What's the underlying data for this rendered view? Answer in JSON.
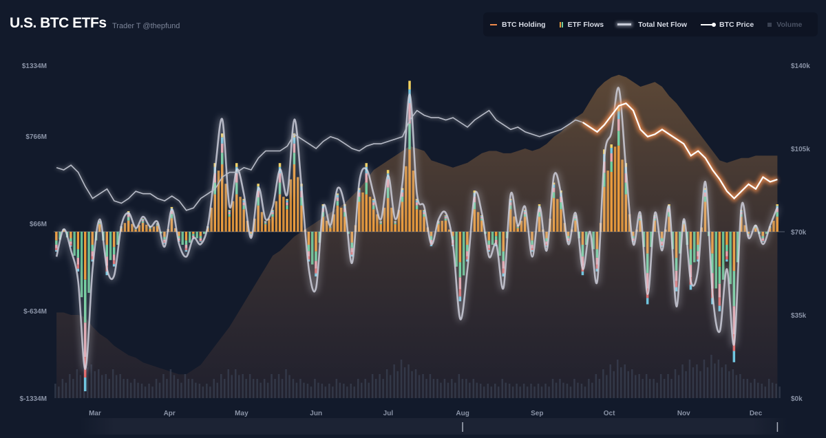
{
  "header": {
    "title": "U.S. BTC ETFs",
    "subtitle": "Trader T @thepfund"
  },
  "legend": [
    {
      "label": "BTC Holding",
      "color": "#f08a4b",
      "icon": "dash"
    },
    {
      "label": "ETF Flows",
      "color": "#e89a3c",
      "icon": "twin-bars"
    },
    {
      "label": "Total Net Flow",
      "color": "#c9ccd8",
      "icon": "glow-line"
    },
    {
      "label": "BTC Price",
      "color": "#ffffff",
      "icon": "line-dot"
    },
    {
      "label": "Volume",
      "color": "#3a4152",
      "icon": "square",
      "state": "disabled"
    }
  ],
  "colors": {
    "background": "#121a2b",
    "flow_segments": [
      "#e89a3c",
      "#6fcf9c",
      "#e8a3ab",
      "#70c6e0",
      "#e06a6a",
      "#f0d060",
      "#a08ae0"
    ],
    "holding_fill": "#5a4636",
    "price_highlight": "#f08a4b"
  },
  "chart_data": {
    "type": "bar+line+area",
    "left_axis": {
      "ticks": [
        "$1334M",
        "$766M",
        "$66M",
        "$-634M",
        "$-1334M"
      ],
      "range": [
        -1334,
        1334
      ],
      "unit": "$M"
    },
    "right_axis": {
      "ticks": [
        "$140k",
        "$105k",
        "$70k",
        "$35k",
        "$0k"
      ],
      "range": [
        0,
        140
      ],
      "unit": "$k"
    },
    "x_ticks": [
      "Mar",
      "Apr",
      "May",
      "Jun",
      "Jul",
      "Aug",
      "Sep",
      "Oct",
      "Nov",
      "Dec"
    ],
    "x_tick_dates": [
      "03-01",
      "04-01",
      "05-01",
      "06-01",
      "07-01",
      "08-01",
      "09-01",
      "10-01",
      "11-01",
      "12-01"
    ],
    "dates": [
      "02-13",
      "02-16",
      "02-19",
      "02-22",
      "02-25",
      "02-28",
      "03-03",
      "03-06",
      "03-09",
      "03-12",
      "03-15",
      "03-18",
      "03-21",
      "03-24",
      "03-27",
      "03-30",
      "04-02",
      "04-05",
      "04-08",
      "04-11",
      "04-14",
      "04-17",
      "04-20",
      "04-23",
      "04-26",
      "04-29",
      "05-02",
      "05-05",
      "05-08",
      "05-11",
      "05-14",
      "05-17",
      "05-20",
      "05-23",
      "05-26",
      "05-29",
      "06-01",
      "06-04",
      "06-07",
      "06-10",
      "06-13",
      "06-16",
      "06-19",
      "06-22",
      "06-25",
      "06-28",
      "07-01",
      "07-04",
      "07-07",
      "07-10",
      "07-13",
      "07-16",
      "07-19",
      "07-22",
      "07-25",
      "07-28",
      "07-31",
      "08-03",
      "08-06",
      "08-09",
      "08-12",
      "08-15",
      "08-18",
      "08-21",
      "08-24",
      "08-27",
      "08-30",
      "09-02",
      "09-05",
      "09-08",
      "09-11",
      "09-14",
      "09-17",
      "09-20",
      "09-23",
      "09-26",
      "09-29",
      "10-02",
      "10-05",
      "10-08",
      "10-11",
      "10-14",
      "10-17",
      "10-20",
      "10-23",
      "10-26",
      "10-29",
      "11-01",
      "11-04",
      "11-07",
      "11-10",
      "11-13",
      "11-16",
      "11-19",
      "11-22",
      "11-25",
      "11-28",
      "12-01",
      "12-04",
      "12-07",
      "12-10"
    ],
    "series": [
      {
        "name": "Total Net Flow",
        "axis": "left",
        "values": [
          -200,
          20,
          -150,
          -400,
          -1100,
          -300,
          100,
          -300,
          -350,
          50,
          150,
          30,
          120,
          40,
          80,
          -120,
          180,
          -100,
          -200,
          -50,
          -100,
          50,
          500,
          900,
          200,
          500,
          300,
          -50,
          350,
          100,
          200,
          500,
          300,
          900,
          350,
          -300,
          -450,
          200,
          50,
          350,
          200,
          -250,
          400,
          500,
          300,
          100,
          450,
          100,
          400,
          1100,
          300,
          200,
          -100,
          100,
          150,
          -100,
          -700,
          -300,
          300,
          150,
          -200,
          -100,
          -450,
          300,
          50,
          200,
          -200,
          200,
          -150,
          450,
          300,
          -100,
          150,
          -300,
          0,
          -400,
          600,
          800,
          1150,
          500,
          -100,
          150,
          -500,
          150,
          -150,
          200,
          -600,
          100,
          -400,
          -300,
          400,
          -500,
          -800,
          -300,
          -900,
          200,
          -50,
          50,
          -100,
          50,
          200
        ]
      },
      {
        "name": "BTC Price",
        "axis": "right",
        "values": [
          97,
          96,
          98,
          95,
          89,
          84,
          86,
          88,
          83,
          82,
          84,
          87,
          86,
          86,
          84,
          83,
          85,
          83,
          79,
          80,
          84,
          86,
          88,
          93,
          95,
          95,
          97,
          96,
          101,
          104,
          104,
          104,
          106,
          111,
          109,
          107,
          105,
          108,
          110,
          109,
          107,
          105,
          104,
          106,
          107,
          107,
          108,
          109,
          110,
          117,
          121,
          119,
          118,
          118,
          117,
          118,
          116,
          114,
          117,
          119,
          121,
          117,
          115,
          113,
          114,
          112,
          111,
          110,
          111,
          112,
          113,
          115,
          117,
          116,
          114,
          112,
          115,
          119,
          123,
          124,
          121,
          113,
          110,
          111,
          113,
          111,
          109,
          107,
          102,
          104,
          101,
          96,
          92,
          87,
          84,
          87,
          90,
          88,
          93,
          91,
          92
        ]
      },
      {
        "name": "BTC Holding",
        "axis": "right",
        "values": [
          36,
          36,
          35,
          35,
          34,
          30,
          27,
          25,
          22,
          20,
          18,
          17,
          15,
          14,
          13,
          12,
          11,
          10,
          10,
          12,
          14,
          18,
          22,
          26,
          30,
          35,
          40,
          45,
          50,
          55,
          60,
          62,
          65,
          68,
          70,
          72,
          74,
          76,
          78,
          80,
          82,
          85,
          88,
          92,
          96,
          98,
          100,
          102,
          104,
          106,
          105,
          104,
          100,
          99,
          98,
          97,
          98,
          99,
          101,
          103,
          104,
          104,
          103,
          103,
          104,
          105,
          104,
          105,
          107,
          110,
          112,
          115,
          118,
          120,
          125,
          130,
          133,
          135,
          136,
          135,
          133,
          131,
          132,
          133,
          131,
          127,
          124,
          120,
          116,
          112,
          108,
          104,
          100,
          99,
          100,
          101,
          101,
          102,
          102,
          102,
          102
        ]
      },
      {
        "name": "Volume",
        "values": [
          3,
          4,
          5,
          6,
          8,
          7,
          6,
          5,
          6,
          5,
          4,
          4,
          3,
          3,
          4,
          5,
          6,
          4,
          5,
          4,
          3,
          3,
          4,
          5,
          6,
          6,
          5,
          5,
          4,
          4,
          5,
          5,
          6,
          4,
          4,
          3,
          4,
          3,
          3,
          4,
          3,
          3,
          4,
          4,
          5,
          5,
          6,
          7,
          8,
          7,
          6,
          5,
          5,
          4,
          4,
          4,
          5,
          4,
          4,
          3,
          3,
          3,
          4,
          3,
          3,
          3,
          3,
          3,
          3,
          4,
          4,
          3,
          4,
          3,
          4,
          5,
          6,
          7,
          8,
          7,
          6,
          5,
          5,
          4,
          5,
          5,
          6,
          7,
          8,
          7,
          8,
          9,
          8,
          7,
          6,
          5,
          4,
          4,
          3,
          4,
          3
        ]
      }
    ],
    "price_highlight_from": "09-20",
    "zero_line": true,
    "grid": false,
    "legend_position": "top-right"
  },
  "navigator": {
    "range_start": "08-01",
    "range_end": "12-10"
  }
}
